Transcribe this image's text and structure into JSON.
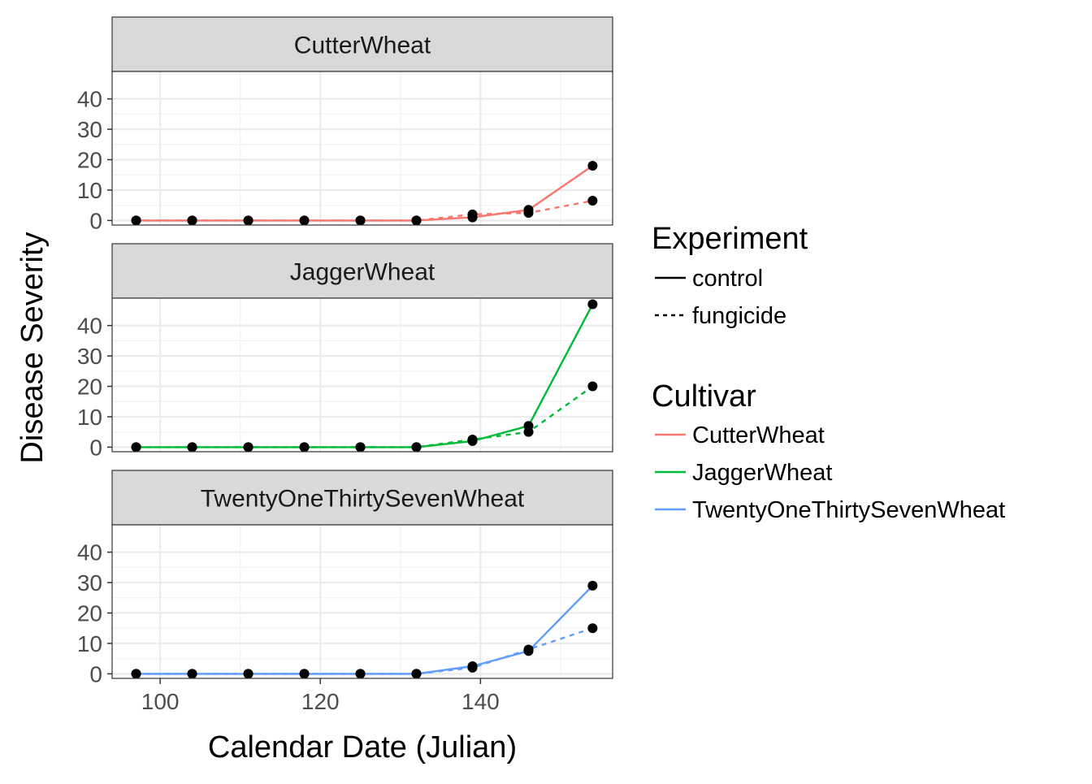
{
  "chart_data": {
    "type": "line",
    "xlabel": "Calendar Date (Julian)",
    "ylabel": "Disease Severity",
    "x": [
      97,
      104,
      111,
      118,
      125,
      132,
      139,
      146,
      154
    ],
    "xlim": [
      94,
      156.5
    ],
    "ylim": [
      -1.5,
      49
    ],
    "x_ticks": [
      100,
      120,
      140
    ],
    "y_ticks": [
      0,
      10,
      20,
      30,
      40
    ],
    "grid": true,
    "colors": {
      "CutterWheat": "#F8766D",
      "JaggerWheat": "#00BA38",
      "TwentyOneThirtySevenWheat": "#619CFF",
      "point": "#000000",
      "strip_bg": "#D9D9D9",
      "grid_major": "#EBEBEB"
    },
    "panels": [
      {
        "strip_label": "CutterWheat",
        "cultivar": "CutterWheat",
        "series": [
          {
            "experiment": "control",
            "values": [
              0,
              0,
              0,
              0,
              0,
              0,
              1,
              3.5,
              18
            ]
          },
          {
            "experiment": "fungicide",
            "values": [
              0,
              0,
              0,
              0,
              0,
              0,
              2,
              2.5,
              6.5
            ]
          }
        ]
      },
      {
        "strip_label": "JaggerWheat",
        "cultivar": "JaggerWheat",
        "series": [
          {
            "experiment": "control",
            "values": [
              0,
              0,
              0,
              0,
              0,
              0,
              2,
              7,
              47
            ]
          },
          {
            "experiment": "fungicide",
            "values": [
              0,
              0,
              0,
              0,
              0,
              0,
              2.5,
              5,
              20
            ]
          }
        ]
      },
      {
        "strip_label": "TwentyOneThirtySevenWheat",
        "cultivar": "TwentyOneThirtySevenWheat",
        "series": [
          {
            "experiment": "control",
            "values": [
              0,
              0,
              0,
              0,
              0,
              0,
              2.5,
              7.5,
              29
            ]
          },
          {
            "experiment": "fungicide",
            "values": [
              0,
              0,
              0,
              0,
              0,
              0,
              2,
              8,
              15
            ]
          }
        ]
      }
    ],
    "legend": {
      "position": "right",
      "groups": [
        {
          "title": "Experiment",
          "items": [
            {
              "label": "control",
              "linetype": "solid"
            },
            {
              "label": "fungicide",
              "linetype": "dashed"
            }
          ]
        },
        {
          "title": "Cultivar",
          "items": [
            {
              "label": "CutterWheat",
              "color": "#F8766D"
            },
            {
              "label": "JaggerWheat",
              "color": "#00BA38"
            },
            {
              "label": "TwentyOneThirtySevenWheat",
              "color": "#619CFF"
            }
          ]
        }
      ]
    }
  }
}
